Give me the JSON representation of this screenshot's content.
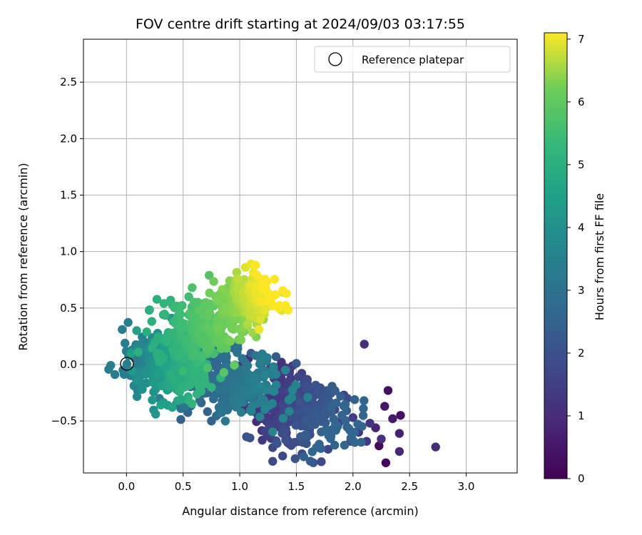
{
  "chart_data": {
    "type": "scatter",
    "title": "FOV centre drift starting at 2024/09/03 03:17:55",
    "xlabel": "Angular distance from reference (arcmin)",
    "ylabel": "Rotation from reference (arcmin)",
    "xlim": [
      -0.38,
      3.45
    ],
    "ylim": [
      -0.96,
      2.88
    ],
    "xticks": [
      0.0,
      0.5,
      1.0,
      1.5,
      2.0,
      2.5,
      3.0
    ],
    "xtick_labels": [
      "0.0",
      "0.5",
      "1.0",
      "1.5",
      "2.0",
      "2.5",
      "3.0"
    ],
    "yticks": [
      -0.5,
      0.0,
      0.5,
      1.0,
      1.5,
      2.0,
      2.5
    ],
    "ytick_labels": [
      "−0.5",
      "0.0",
      "0.5",
      "1.0",
      "1.5",
      "2.0",
      "2.5"
    ],
    "grid": true,
    "legend": {
      "position": "upper right",
      "entries": [
        "Reference platepar"
      ]
    },
    "reference_point": {
      "x": 0.0,
      "y": 0.0
    },
    "colorbar": {
      "label": "Hours from first FF file",
      "range": [
        0,
        7.1
      ],
      "ticks": [
        0,
        1,
        2,
        3,
        4,
        5,
        6,
        7
      ],
      "tick_labels": [
        "0",
        "1",
        "2",
        "3",
        "4",
        "5",
        "6",
        "7"
      ],
      "colormap": "viridis"
    },
    "series": [
      {
        "points": [
          {
            "x": 2.29,
            "y": -0.87,
            "c": 0.1
          },
          {
            "x": 2.23,
            "y": -0.72,
            "c": 0.2
          },
          {
            "x": 2.31,
            "y": -0.23,
            "c": 0.3
          },
          {
            "x": 2.42,
            "y": -0.45,
            "c": 0.4
          },
          {
            "x": 2.28,
            "y": -0.37,
            "c": 0.5
          },
          {
            "x": 2.35,
            "y": -0.48,
            "c": 0.6
          },
          {
            "x": 2.41,
            "y": -0.61,
            "c": 0.7
          },
          {
            "x": 2.2,
            "y": -0.56,
            "c": 0.8
          },
          {
            "x": 2.41,
            "y": -0.77,
            "c": 0.9
          },
          {
            "x": 2.73,
            "y": -0.73,
            "c": 1.0
          },
          {
            "x": 2.1,
            "y": 0.18,
            "c": 1.1
          },
          {
            "x": 2.25,
            "y": -0.66,
            "c": 1.1
          },
          {
            "x": 2.15,
            "y": -0.52,
            "c": 1.2
          },
          {
            "x": 2.05,
            "y": -0.6,
            "c": 1.3
          },
          {
            "x": 2.12,
            "y": -0.68,
            "c": 1.3
          },
          {
            "x": 2.0,
            "y": -0.47,
            "c": 1.4
          },
          {
            "x": 1.98,
            "y": -0.68,
            "c": 1.5
          },
          {
            "x": 1.92,
            "y": -0.27,
            "c": 1.5
          },
          {
            "x": 1.88,
            "y": -0.51,
            "c": 1.6
          },
          {
            "x": 1.84,
            "y": -0.4,
            "c": 1.7
          },
          {
            "x": 1.78,
            "y": -0.75,
            "c": 1.7
          },
          {
            "x": 1.72,
            "y": -0.86,
            "c": 1.8
          },
          {
            "x": 1.55,
            "y": -0.79,
            "c": 1.8
          },
          {
            "x": 1.62,
            "y": -0.62,
            "c": 1.9
          },
          {
            "x": 1.95,
            "y": -0.3,
            "c": 1.9
          },
          {
            "x": 1.06,
            "y": -0.64,
            "c": 2.0
          },
          {
            "x": 1.09,
            "y": -0.65,
            "c": 2.0
          },
          {
            "x": 1.33,
            "y": -0.7,
            "c": 2.1
          },
          {
            "x": 1.5,
            "y": 0.01,
            "c": 2.2
          },
          {
            "x": 1.32,
            "y": 0.07,
            "c": 2.3
          },
          {
            "x": 1.1,
            "y": 0.1,
            "c": 2.4
          },
          {
            "x": 0.75,
            "y": -0.5,
            "c": 2.5
          },
          {
            "x": 0.82,
            "y": -0.43,
            "c": 2.6
          },
          {
            "x": 0.48,
            "y": -0.39,
            "c": 3.0
          },
          {
            "x": 0.52,
            "y": -0.37,
            "c": 3.1
          },
          {
            "x": 0.37,
            "y": -0.22,
            "c": 3.4
          },
          {
            "x": 0.29,
            "y": -0.3,
            "c": 3.5
          },
          {
            "x": 0.14,
            "y": -0.22,
            "c": 4.0
          },
          {
            "x": 0.1,
            "y": -0.14,
            "c": 4.1
          },
          {
            "x": 0.05,
            "y": -0.06,
            "c": 4.3
          },
          {
            "x": 0.04,
            "y": 0.1,
            "c": 4.5
          },
          {
            "x": 0.09,
            "y": 0.3,
            "c": 4.6
          },
          {
            "x": 0.2,
            "y": 0.48,
            "c": 4.9
          },
          {
            "x": 0.39,
            "y": 0.57,
            "c": 5.1
          },
          {
            "x": 0.33,
            "y": 0.54,
            "c": 5.2
          },
          {
            "x": 0.5,
            "y": -0.06,
            "c": 5.4
          },
          {
            "x": 0.55,
            "y": 0.6,
            "c": 5.5
          },
          {
            "x": 0.58,
            "y": 0.68,
            "c": 5.7
          },
          {
            "x": 0.73,
            "y": 0.79,
            "c": 5.8
          },
          {
            "x": 0.99,
            "y": 0.22,
            "c": 6.2
          },
          {
            "x": 1.21,
            "y": 0.4,
            "c": 6.5
          },
          {
            "x": 1.38,
            "y": 0.64,
            "c": 6.8
          },
          {
            "x": 1.37,
            "y": 0.48,
            "c": 6.9
          },
          {
            "x": 1.05,
            "y": 0.86,
            "c": 6.9
          },
          {
            "x": 1.1,
            "y": 0.89,
            "c": 7.0
          },
          {
            "x": 1.17,
            "y": 0.31,
            "c": 7.0
          },
          {
            "x": 1.14,
            "y": 0.88,
            "c": 7.1
          }
        ]
      }
    ],
    "clusters": [
      {
        "cx": 1.52,
        "cy": -0.4,
        "sx": 0.24,
        "sy": 0.16,
        "rot": -0.42,
        "n": 300,
        "cmin": 1.0,
        "cmax": 2.6
      },
      {
        "cx": 0.9,
        "cy": -0.14,
        "sx": 0.26,
        "sy": 0.14,
        "rot": -0.3,
        "n": 280,
        "cmin": 2.2,
        "cmax": 3.6
      },
      {
        "cx": 0.34,
        "cy": -0.02,
        "sx": 0.18,
        "sy": 0.14,
        "rot": -0.15,
        "n": 320,
        "cmin": 3.4,
        "cmax": 5.2
      },
      {
        "cx": 0.66,
        "cy": 0.3,
        "sx": 0.2,
        "sy": 0.14,
        "rot": 0.35,
        "n": 280,
        "cmin": 5.0,
        "cmax": 6.3
      },
      {
        "cx": 1.06,
        "cy": 0.58,
        "sx": 0.12,
        "sy": 0.11,
        "rot": 0.3,
        "n": 220,
        "cmin": 6.2,
        "cmax": 7.1
      }
    ]
  }
}
